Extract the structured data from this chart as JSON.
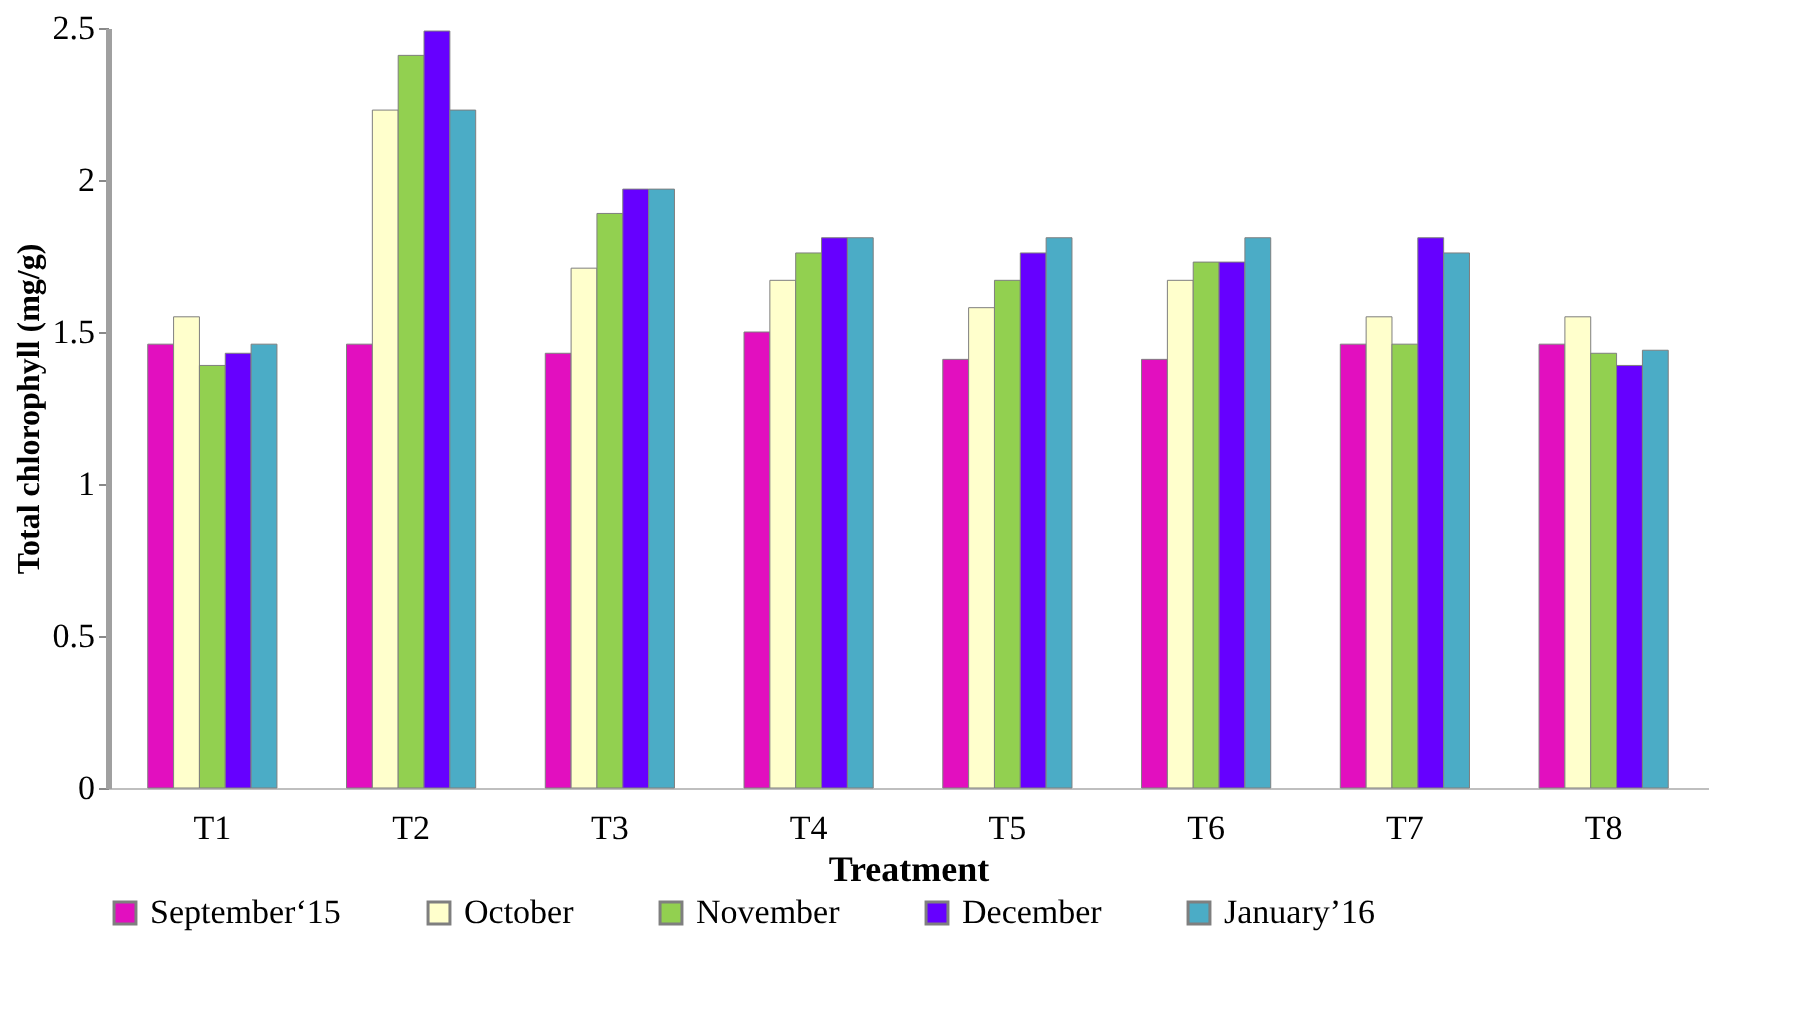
{
  "chart_data": {
    "type": "bar",
    "xlabel": "Treatment",
    "ylabel": "Total chlorophyll (mg/g)",
    "categories": [
      "T1",
      "T2",
      "T3",
      "T4",
      "T5",
      "T6",
      "T7",
      "T8"
    ],
    "series": [
      {
        "name": "September‘15",
        "color": "#e20fbf",
        "values": [
          1.46,
          1.46,
          1.43,
          1.5,
          1.41,
          1.41,
          1.46,
          1.46
        ]
      },
      {
        "name": "October",
        "color": "#ffffcc",
        "values": [
          1.55,
          2.23,
          1.71,
          1.67,
          1.58,
          1.67,
          1.55,
          1.55
        ]
      },
      {
        "name": "November",
        "color": "#92d050",
        "values": [
          1.39,
          2.41,
          1.89,
          1.76,
          1.67,
          1.73,
          1.46,
          1.43
        ]
      },
      {
        "name": "December",
        "color": "#6600ff",
        "values": [
          1.43,
          2.49,
          1.97,
          1.81,
          1.76,
          1.73,
          1.81,
          1.39
        ]
      },
      {
        "name": "January’16",
        "color": "#4bacc6",
        "values": [
          1.46,
          2.23,
          1.97,
          1.81,
          1.81,
          1.81,
          1.76,
          1.44
        ]
      }
    ],
    "ylim": [
      0,
      2.5
    ],
    "yticks": [
      0,
      0.5,
      1,
      1.5,
      2,
      2.5
    ],
    "grid": false,
    "legend": "bottom"
  }
}
